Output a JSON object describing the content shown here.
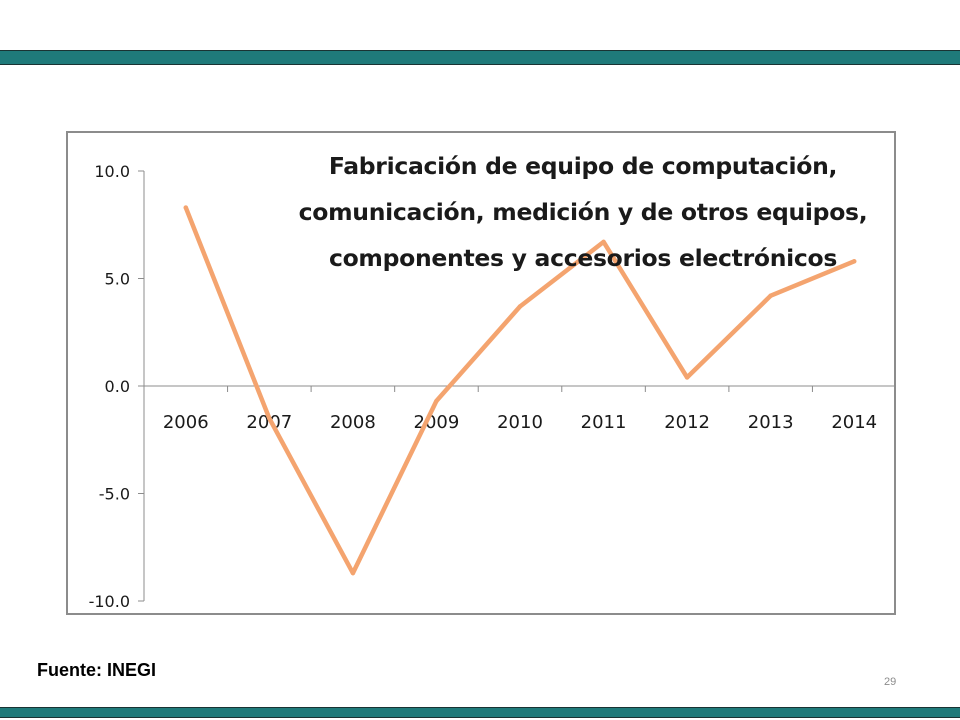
{
  "slide": {
    "source_label": "Fuente: INEGI",
    "page_number": "29",
    "band_color": "#1f7a7a"
  },
  "chart_data": {
    "type": "line",
    "title": "Fabricación de equipo de computación, comunicación,  medición  y de  otros equipos, componentes y accesorios electrónicos",
    "title_lines": [
      "Fabricación de equipo de computación,",
      "comunicación,  medición  y de  otros equipos,",
      "componentes y accesorios electrónicos"
    ],
    "categories": [
      "2006",
      "2007",
      "2008",
      "2009",
      "2010",
      "2011",
      "2012",
      "2013",
      "2014"
    ],
    "values": [
      8.3,
      -1.5,
      -8.7,
      -0.7,
      3.7,
      6.7,
      0.4,
      4.2,
      5.8
    ],
    "ylim": [
      -10,
      10
    ],
    "yticks": [
      10,
      5,
      0,
      -5,
      -10
    ],
    "ytick_labels": [
      "10.0",
      "5.0",
      "0.0",
      "-5.0",
      "-10.0"
    ],
    "line_color": "#f4a46f",
    "grid": false,
    "legend": "none"
  }
}
